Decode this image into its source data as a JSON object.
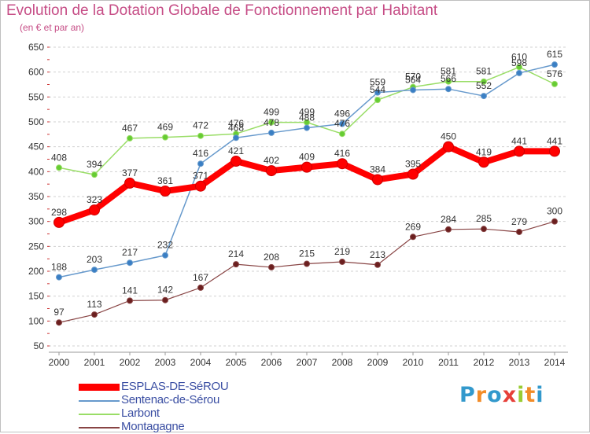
{
  "title": "Evolution de la Dotation Globale de Fonctionnement par Habitant",
  "subtitle": "(en € et par an)",
  "chart_data": {
    "type": "line",
    "title": "Evolution de la Dotation Globale de Fonctionnement par Habitant",
    "ylabel": "(en € et par an)",
    "xlabel": "",
    "ylim": [
      50,
      650
    ],
    "yticks": [
      50,
      100,
      150,
      200,
      250,
      300,
      350,
      400,
      450,
      500,
      550,
      600,
      650
    ],
    "x": [
      "2000",
      "2001",
      "2002",
      "2003",
      "2004",
      "2005",
      "2006",
      "2007",
      "2008",
      "2009",
      "2010",
      "2011",
      "2012",
      "2013",
      "2014"
    ],
    "grid": "horizontal dashed",
    "legend_position": "bottom-left",
    "series": [
      {
        "name": "ESPLAS-DE-SéROU",
        "color": "#ff0000",
        "values": [
          298,
          323,
          377,
          361,
          371,
          421,
          402,
          409,
          416,
          384,
          395,
          450,
          419,
          441,
          441
        ]
      },
      {
        "name": "Sentenac-de-Sérou",
        "color": "#6699cc",
        "values": [
          188,
          203,
          217,
          232,
          416,
          468,
          478,
          488,
          496,
          559,
          564,
          566,
          552,
          598,
          615
        ]
      },
      {
        "name": "Larbont",
        "color": "#99dd66",
        "values": [
          408,
          394,
          467,
          469,
          472,
          476,
          499,
          499,
          476,
          544,
          570,
          581,
          581,
          610,
          576
        ]
      },
      {
        "name": "Montagagne",
        "color": "#884444",
        "values": [
          97,
          113,
          141,
          142,
          167,
          214,
          208,
          215,
          219,
          213,
          269,
          284,
          285,
          279,
          300
        ]
      }
    ]
  },
  "logo": {
    "text": "Proxiti",
    "letters": [
      "P",
      "r",
      "o",
      "x",
      "i",
      "t",
      "i"
    ],
    "colors": [
      "#3399cc",
      "#f28c28",
      "#3399cc",
      "#e6403a",
      "#99cc33",
      "#f28c28",
      "#3399cc"
    ]
  }
}
